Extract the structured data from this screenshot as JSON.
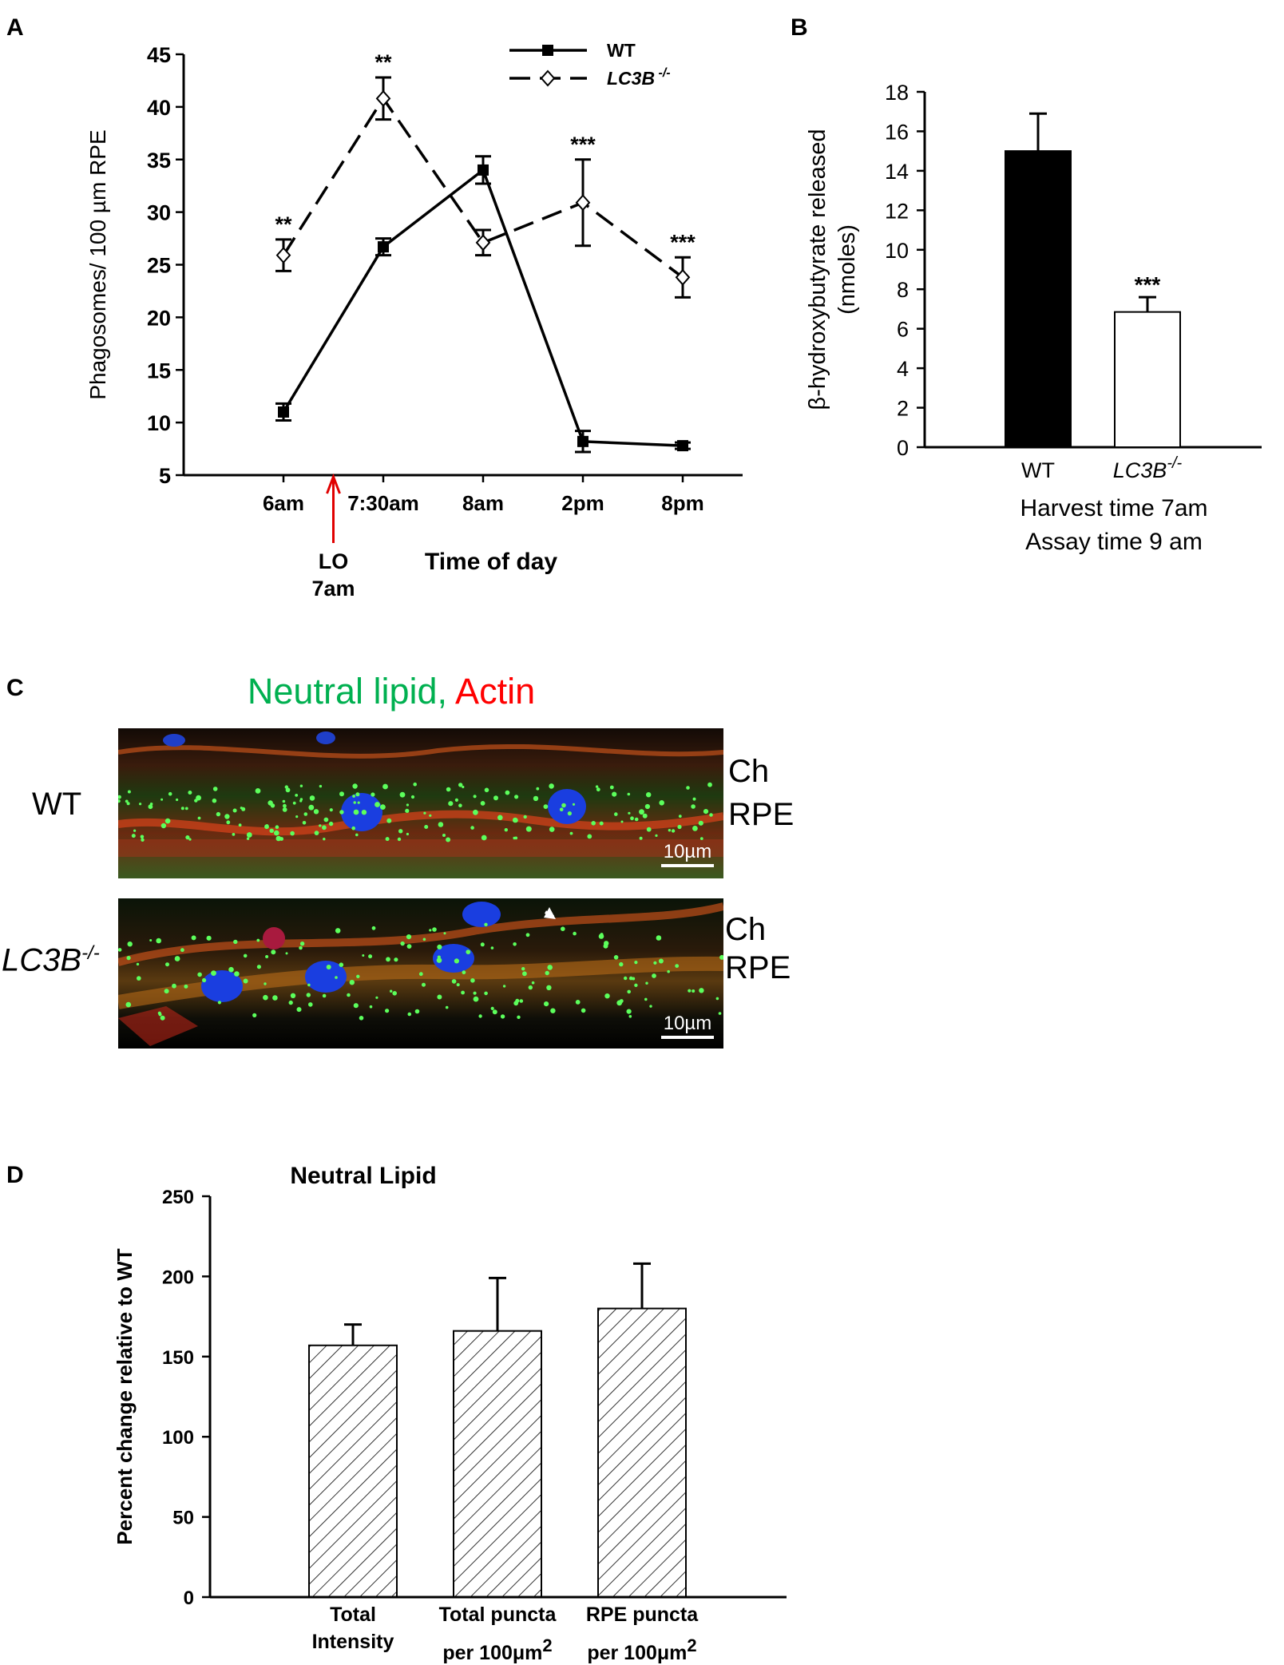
{
  "panels": {
    "A": "A",
    "B": "B",
    "C": "C",
    "D": "D"
  },
  "chart_data": [
    {
      "panel": "A",
      "type": "line",
      "ylabel": "Phagosomes/ 100 µm RPE",
      "xlabel": "Time of day",
      "categories": [
        "6am",
        "7:30am",
        "8am",
        "2pm",
        "8pm"
      ],
      "ylim": [
        5,
        45
      ],
      "yticks": [
        5,
        10,
        15,
        20,
        25,
        30,
        35,
        40,
        45
      ],
      "legend": {
        "placement": "top-right"
      },
      "annotation": {
        "line1": "LO",
        "line2": "7am",
        "position": 1.5
      },
      "series": [
        {
          "name": "WT",
          "label_main": "WT",
          "label_sup": "",
          "values": [
            11,
            26.7,
            34,
            8.2,
            7.8
          ],
          "errors": [
            0.8,
            0.8,
            1.3,
            1.0,
            0.3
          ],
          "style": "solid",
          "marker": "filled-square"
        },
        {
          "name": "LC3B-/-",
          "label_main": "LC3B",
          "label_sup": " -/-",
          "values": [
            25.9,
            40.8,
            27.1,
            30.9,
            23.8
          ],
          "errors": [
            1.5,
            2.0,
            1.2,
            4.1,
            1.9
          ],
          "style": "dashed",
          "marker": "open-diamond"
        }
      ],
      "significance": [
        "**",
        "**",
        "",
        "***",
        "***"
      ]
    },
    {
      "panel": "B",
      "type": "bar",
      "ylabel_line1": "β-hydroxybutyrate released",
      "ylabel_line2": "(nmoles)",
      "xlabel_line1": "Harvest time 7am",
      "xlabel_line2": "Assay time 9 am",
      "ylim": [
        0,
        18
      ],
      "yticks": [
        0,
        2,
        4,
        6,
        8,
        10,
        12,
        14,
        16,
        18
      ],
      "categories": [
        {
          "main": "WT",
          "sup": ""
        },
        {
          "main": "LC3B",
          "sup": "-/-"
        }
      ],
      "values": [
        15,
        6.85
      ],
      "errors": [
        1.9,
        0.75
      ],
      "fills": [
        "#000000",
        "#ffffff"
      ],
      "significance": [
        "",
        "***"
      ]
    },
    {
      "panel": "D",
      "type": "bar",
      "title": "Neutral Lipid",
      "ylabel": "Percent change relative to WT",
      "ylim": [
        0,
        250
      ],
      "yticks": [
        0,
        50,
        100,
        150,
        200,
        250
      ],
      "categories": [
        {
          "line1": "Total",
          "line2": "Intensity",
          "sup": ""
        },
        {
          "line1": "Total puncta",
          "line2": "per 100μm",
          "sup": "2"
        },
        {
          "line1": "RPE puncta",
          "line2": "per 100μm",
          "sup": "2"
        }
      ],
      "values": [
        157,
        166,
        180
      ],
      "errors": [
        13,
        33,
        28
      ],
      "fill": "hatched"
    }
  ],
  "micrograph": {
    "title_part1": "Neutral lipid,",
    "title_part2": " Actin",
    "title_color1": "#00b050",
    "title_color2": "#ff0000",
    "rows": [
      {
        "label_main": "WT",
        "label_sup": "",
        "top_label": "Ch",
        "bottom_label": "RPE",
        "scale": "10µm"
      },
      {
        "label_main": "LC3B",
        "label_sup": "-/-",
        "top_label": "Ch",
        "bottom_label": "RPE",
        "scale": "10µm"
      }
    ]
  }
}
